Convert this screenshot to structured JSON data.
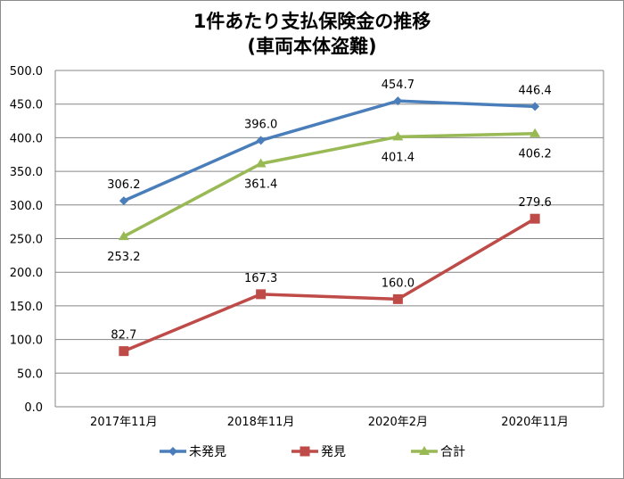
{
  "chart_data": {
    "type": "line",
    "title": "1件あたり支払保険金の推移",
    "subtitle": "(車両本体盗難)",
    "categories": [
      "2017年11月",
      "2018年11月",
      "2020年2月",
      "2020年11月"
    ],
    "ylim": [
      0,
      500
    ],
    "yticks": [
      "0.0",
      "50.0",
      "100.0",
      "150.0",
      "200.0",
      "250.0",
      "300.0",
      "350.0",
      "400.0",
      "450.0",
      "500.0"
    ],
    "grid": true,
    "legend_position": "bottom",
    "series": [
      {
        "name": "未発見",
        "values": [
          306.2,
          396.0,
          454.7,
          446.4
        ],
        "labels": [
          "306.2",
          "396.0",
          "454.7",
          "446.4"
        ],
        "color": "#4a7ebb",
        "marker": "diamond"
      },
      {
        "name": "発見",
        "values": [
          82.7,
          167.3,
          160.0,
          279.6
        ],
        "labels": [
          "82.7",
          "167.3",
          "160.0",
          "279.6"
        ],
        "color": "#be4b48",
        "marker": "square"
      },
      {
        "name": "合計",
        "values": [
          253.2,
          361.4,
          401.4,
          406.2
        ],
        "labels": [
          "253.2",
          "361.4",
          "401.4",
          "406.2"
        ],
        "color": "#98b954",
        "marker": "triangle"
      }
    ]
  }
}
